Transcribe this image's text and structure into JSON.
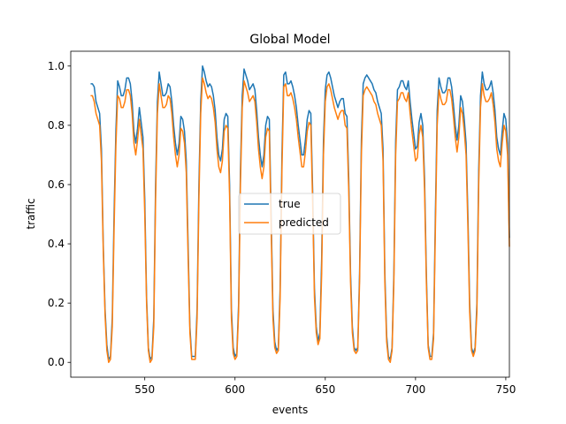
{
  "chart_data": {
    "type": "line",
    "title": "Global Model",
    "xlabel": "events",
    "ylabel": "traffic",
    "xlim": [
      509,
      752
    ],
    "ylim": [
      -0.05,
      1.05
    ],
    "xticks": [
      550,
      600,
      650,
      700,
      750
    ],
    "yticks": [
      0.0,
      0.2,
      0.4,
      0.6,
      0.8,
      1.0
    ],
    "xtick_labels": [
      "550",
      "600",
      "650",
      "700",
      "750"
    ],
    "ytick_labels": [
      "0.0",
      "0.2",
      "0.4",
      "0.6",
      "0.8",
      "1.0"
    ],
    "grid": false,
    "legend_position": "center",
    "x_start": 520,
    "colors": {
      "true": "#1f77b4",
      "predicted": "#ff7f0e"
    },
    "series": [
      {
        "name": "true",
        "values": [
          0.94,
          0.94,
          0.93,
          0.88,
          0.86,
          0.84,
          0.72,
          0.4,
          0.18,
          0.06,
          0.01,
          0.02,
          0.15,
          0.5,
          0.78,
          0.95,
          0.93,
          0.9,
          0.9,
          0.92,
          0.96,
          0.96,
          0.94,
          0.88,
          0.78,
          0.74,
          0.79,
          0.86,
          0.81,
          0.76,
          0.55,
          0.22,
          0.05,
          0.01,
          0.02,
          0.15,
          0.6,
          0.88,
          0.98,
          0.94,
          0.9,
          0.9,
          0.91,
          0.94,
          0.93,
          0.88,
          0.8,
          0.74,
          0.7,
          0.74,
          0.83,
          0.82,
          0.78,
          0.68,
          0.4,
          0.12,
          0.02,
          0.02,
          0.02,
          0.18,
          0.6,
          0.88,
          1.0,
          0.98,
          0.95,
          0.93,
          0.94,
          0.93,
          0.9,
          0.85,
          0.76,
          0.7,
          0.68,
          0.72,
          0.82,
          0.84,
          0.83,
          0.6,
          0.18,
          0.05,
          0.02,
          0.03,
          0.2,
          0.65,
          0.9,
          0.99,
          0.97,
          0.95,
          0.92,
          0.93,
          0.94,
          0.92,
          0.85,
          0.76,
          0.7,
          0.66,
          0.7,
          0.8,
          0.83,
          0.82,
          0.5,
          0.18,
          0.07,
          0.04,
          0.05,
          0.25,
          0.7,
          0.97,
          0.98,
          0.94,
          0.94,
          0.95,
          0.93,
          0.9,
          0.86,
          0.8,
          0.75,
          0.7,
          0.7,
          0.75,
          0.82,
          0.85,
          0.84,
          0.58,
          0.25,
          0.12,
          0.07,
          0.1,
          0.35,
          0.75,
          0.92,
          0.97,
          0.98,
          0.96,
          0.93,
          0.9,
          0.88,
          0.86,
          0.88,
          0.89,
          0.89,
          0.84,
          0.83,
          0.62,
          0.3,
          0.12,
          0.05,
          0.04,
          0.05,
          0.3,
          0.75,
          0.94,
          0.96,
          0.97,
          0.96,
          0.95,
          0.94,
          0.92,
          0.91,
          0.88,
          0.86,
          0.84,
          0.72,
          0.3,
          0.09,
          0.02,
          0.01,
          0.05,
          0.3,
          0.75,
          0.92,
          0.93,
          0.95,
          0.95,
          0.93,
          0.92,
          0.95,
          0.88,
          0.82,
          0.77,
          0.72,
          0.73,
          0.81,
          0.84,
          0.8,
          0.62,
          0.3,
          0.06,
          0.02,
          0.02,
          0.1,
          0.5,
          0.85,
          0.96,
          0.93,
          0.91,
          0.91,
          0.92,
          0.96,
          0.96,
          0.93,
          0.87,
          0.8,
          0.75,
          0.8,
          0.9,
          0.88,
          0.82,
          0.74,
          0.5,
          0.2,
          0.05,
          0.03,
          0.05,
          0.2,
          0.65,
          0.9,
          0.98,
          0.94,
          0.92,
          0.92,
          0.93,
          0.95,
          0.91,
          0.85,
          0.76,
          0.72,
          0.7,
          0.78,
          0.84,
          0.82,
          0.74,
          0.42
        ],
        "stroke_width": 1.5
      },
      {
        "name": "predicted",
        "values": [
          0.9,
          0.9,
          0.88,
          0.84,
          0.82,
          0.8,
          0.68,
          0.38,
          0.16,
          0.04,
          0.0,
          0.01,
          0.12,
          0.45,
          0.73,
          0.9,
          0.89,
          0.86,
          0.86,
          0.88,
          0.92,
          0.92,
          0.9,
          0.84,
          0.74,
          0.7,
          0.75,
          0.82,
          0.77,
          0.72,
          0.5,
          0.2,
          0.04,
          0.0,
          0.01,
          0.12,
          0.55,
          0.84,
          0.94,
          0.9,
          0.86,
          0.86,
          0.87,
          0.9,
          0.89,
          0.84,
          0.76,
          0.7,
          0.66,
          0.7,
          0.79,
          0.78,
          0.74,
          0.64,
          0.36,
          0.1,
          0.01,
          0.01,
          0.01,
          0.15,
          0.55,
          0.84,
          0.96,
          0.94,
          0.91,
          0.89,
          0.9,
          0.89,
          0.86,
          0.81,
          0.72,
          0.66,
          0.64,
          0.68,
          0.78,
          0.8,
          0.79,
          0.56,
          0.15,
          0.03,
          0.01,
          0.02,
          0.17,
          0.6,
          0.86,
          0.95,
          0.93,
          0.91,
          0.88,
          0.89,
          0.9,
          0.88,
          0.81,
          0.72,
          0.66,
          0.62,
          0.66,
          0.76,
          0.79,
          0.78,
          0.46,
          0.15,
          0.05,
          0.03,
          0.04,
          0.22,
          0.65,
          0.93,
          0.94,
          0.9,
          0.9,
          0.91,
          0.89,
          0.86,
          0.82,
          0.76,
          0.71,
          0.66,
          0.66,
          0.71,
          0.78,
          0.81,
          0.8,
          0.54,
          0.22,
          0.1,
          0.06,
          0.08,
          0.3,
          0.7,
          0.88,
          0.93,
          0.94,
          0.92,
          0.89,
          0.86,
          0.84,
          0.82,
          0.84,
          0.85,
          0.85,
          0.8,
          0.79,
          0.58,
          0.27,
          0.1,
          0.04,
          0.03,
          0.04,
          0.27,
          0.7,
          0.9,
          0.92,
          0.93,
          0.92,
          0.91,
          0.9,
          0.88,
          0.87,
          0.84,
          0.82,
          0.8,
          0.68,
          0.27,
          0.07,
          0.01,
          0.0,
          0.04,
          0.27,
          0.7,
          0.88,
          0.89,
          0.91,
          0.91,
          0.89,
          0.88,
          0.91,
          0.84,
          0.78,
          0.73,
          0.68,
          0.69,
          0.77,
          0.8,
          0.76,
          0.58,
          0.27,
          0.05,
          0.01,
          0.01,
          0.08,
          0.45,
          0.8,
          0.92,
          0.89,
          0.87,
          0.87,
          0.88,
          0.92,
          0.92,
          0.89,
          0.83,
          0.76,
          0.71,
          0.76,
          0.86,
          0.84,
          0.78,
          0.7,
          0.46,
          0.17,
          0.04,
          0.02,
          0.04,
          0.17,
          0.6,
          0.86,
          0.94,
          0.9,
          0.88,
          0.88,
          0.89,
          0.91,
          0.87,
          0.81,
          0.72,
          0.68,
          0.66,
          0.74,
          0.8,
          0.78,
          0.7,
          0.39
        ],
        "stroke_width": 1.5
      }
    ]
  }
}
